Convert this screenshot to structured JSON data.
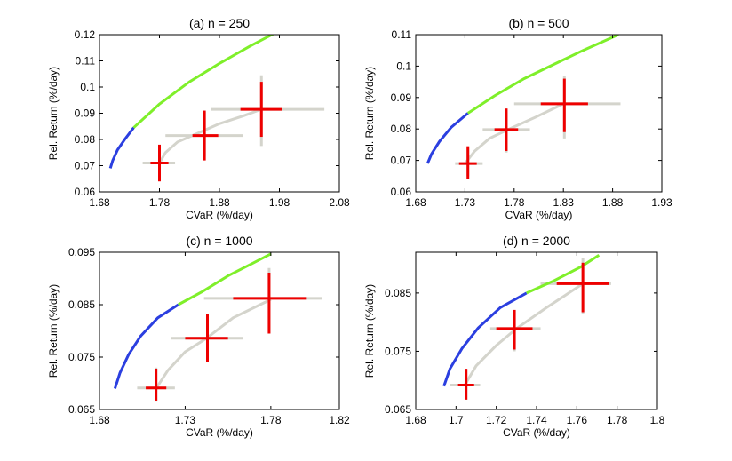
{
  "chart_data": [
    {
      "type": "line",
      "title": "(a) n = 250",
      "xlabel": "CVaR (%/day)",
      "ylabel": "Rel. Return (%/day)",
      "xlim": [
        1.68,
        2.08
      ],
      "ylim": [
        0.06,
        0.12
      ],
      "xticks": [
        "1.68",
        "1.78",
        "1.88",
        "1.98",
        "2.08"
      ],
      "yticks": [
        "0.06",
        "0.07",
        "0.08",
        "0.09",
        "0.1",
        "0.11",
        "0.12"
      ],
      "frontier_blue": [
        [
          1.698,
          0.069
        ],
        [
          1.702,
          0.072
        ],
        [
          1.71,
          0.076
        ],
        [
          1.722,
          0.08
        ],
        [
          1.737,
          0.0845
        ]
      ],
      "frontier_green": [
        [
          1.737,
          0.0845
        ],
        [
          1.78,
          0.0935
        ],
        [
          1.83,
          0.102
        ],
        [
          1.88,
          0.109
        ],
        [
          1.93,
          0.1155
        ],
        [
          1.97,
          0.1203
        ]
      ],
      "gray_curve": [
        [
          1.78,
          0.071
        ],
        [
          1.79,
          0.075
        ],
        [
          1.81,
          0.079
        ],
        [
          1.84,
          0.082
        ],
        [
          1.88,
          0.086
        ],
        [
          1.92,
          0.089
        ],
        [
          1.95,
          0.0915
        ]
      ],
      "estimates": [
        {
          "x": 1.78,
          "y": 0.071,
          "x_lo": 1.765,
          "x_hi": 1.795,
          "y_lo": 0.064,
          "y_hi": 0.078,
          "gx_lo": 1.752,
          "gx_hi": 1.806,
          "gy_lo": 0.0655,
          "gy_hi": 0.0775
        },
        {
          "x": 1.855,
          "y": 0.0815,
          "x_lo": 1.835,
          "x_hi": 1.878,
          "y_lo": 0.072,
          "y_hi": 0.091,
          "gx_lo": 1.79,
          "gx_hi": 1.92,
          "gy_lo": 0.0735,
          "gy_hi": 0.0905
        },
        {
          "x": 1.95,
          "y": 0.0915,
          "x_lo": 1.915,
          "x_hi": 1.985,
          "y_lo": 0.081,
          "y_hi": 0.102,
          "gx_lo": 1.866,
          "gx_hi": 2.055,
          "gy_lo": 0.0775,
          "gy_hi": 0.1045
        }
      ]
    },
    {
      "type": "line",
      "title": "(b) n = 500",
      "xlabel": "CVaR (%/day)",
      "ylabel": "Rel. Return (%/day)",
      "xlim": [
        1.68,
        1.93
      ],
      "ylim": [
        0.06,
        0.11
      ],
      "xticks": [
        "1.68",
        "1.73",
        "1.78",
        "1.83",
        "1.88",
        "1.93"
      ],
      "yticks": [
        "0.06",
        "0.07",
        "0.08",
        "0.09",
        "0.1",
        "0.11"
      ],
      "frontier_blue": [
        [
          1.692,
          0.069
        ],
        [
          1.696,
          0.072
        ],
        [
          1.704,
          0.076
        ],
        [
          1.716,
          0.0805
        ],
        [
          1.733,
          0.085
        ]
      ],
      "frontier_green": [
        [
          1.733,
          0.085
        ],
        [
          1.76,
          0.0905
        ],
        [
          1.79,
          0.096
        ],
        [
          1.82,
          0.1005
        ],
        [
          1.85,
          0.105
        ],
        [
          1.886,
          0.11
        ]
      ],
      "gray_curve": [
        [
          1.73,
          0.069
        ],
        [
          1.74,
          0.073
        ],
        [
          1.755,
          0.077
        ],
        [
          1.775,
          0.08
        ],
        [
          1.8,
          0.0835
        ],
        [
          1.83,
          0.088
        ]
      ],
      "estimates": [
        {
          "x": 1.733,
          "y": 0.069,
          "x_lo": 1.724,
          "x_hi": 1.742,
          "y_lo": 0.064,
          "y_hi": 0.0745,
          "gx_lo": 1.72,
          "gx_hi": 1.748,
          "gy_lo": 0.065,
          "gy_hi": 0.074
        },
        {
          "x": 1.772,
          "y": 0.0798,
          "x_lo": 1.76,
          "x_hi": 1.784,
          "y_lo": 0.073,
          "y_hi": 0.0865,
          "gx_lo": 1.748,
          "gx_hi": 1.796,
          "gy_lo": 0.0725,
          "gy_hi": 0.0855
        },
        {
          "x": 1.831,
          "y": 0.088,
          "x_lo": 1.807,
          "x_hi": 1.855,
          "y_lo": 0.079,
          "y_hi": 0.096,
          "gx_lo": 1.78,
          "gx_hi": 1.888,
          "gy_lo": 0.077,
          "gy_hi": 0.097
        }
      ]
    },
    {
      "type": "line",
      "title": "(c) n = 1000",
      "xlabel": "CVaR (%/day)",
      "ylabel": "Rel. Return (%/day)",
      "xlim": [
        1.68,
        1.82
      ],
      "ylim": [
        0.065,
        0.095
      ],
      "xticks": [
        "1.68",
        "1.73",
        "1.78",
        "1.82"
      ],
      "yticks": [
        "0.065",
        "0.075",
        "0.085",
        "0.095"
      ],
      "frontier_blue": [
        [
          1.689,
          0.069
        ],
        [
          1.692,
          0.072
        ],
        [
          1.697,
          0.0755
        ],
        [
          1.704,
          0.079
        ],
        [
          1.714,
          0.0825
        ],
        [
          1.726,
          0.085
        ]
      ],
      "frontier_green": [
        [
          1.726,
          0.085
        ],
        [
          1.74,
          0.0875
        ],
        [
          1.755,
          0.0905
        ],
        [
          1.77,
          0.093
        ],
        [
          1.78,
          0.0947
        ]
      ],
      "gray_curve": [
        [
          1.713,
          0.069
        ],
        [
          1.72,
          0.0725
        ],
        [
          1.73,
          0.076
        ],
        [
          1.742,
          0.0785
        ],
        [
          1.758,
          0.0825
        ],
        [
          1.78,
          0.086
        ]
      ],
      "estimates": [
        {
          "x": 1.713,
          "y": 0.0691,
          "x_lo": 1.707,
          "x_hi": 1.719,
          "y_lo": 0.0667,
          "y_hi": 0.0728,
          "gx_lo": 1.702,
          "gx_hi": 1.724,
          "gy_lo": 0.0665,
          "gy_hi": 0.073
        },
        {
          "x": 1.743,
          "y": 0.0786,
          "x_lo": 1.73,
          "x_hi": 1.755,
          "y_lo": 0.074,
          "y_hi": 0.0832,
          "gx_lo": 1.722,
          "gx_hi": 1.764,
          "gy_lo": 0.074,
          "gy_hi": 0.083
        },
        {
          "x": 1.779,
          "y": 0.0862,
          "x_lo": 1.758,
          "x_hi": 1.801,
          "y_lo": 0.0795,
          "y_hi": 0.0911,
          "gx_lo": 1.741,
          "gx_hi": 1.81,
          "gy_lo": 0.0795,
          "gy_hi": 0.092
        }
      ]
    },
    {
      "type": "line",
      "title": "(d) n = 2000",
      "xlabel": "CVaR (%/day)",
      "ylabel": "Rel. Return (%/day)",
      "xlim": [
        1.68,
        1.8
      ],
      "ylim": [
        0.065,
        0.092
      ],
      "xticks": [
        "1.68",
        "1.7",
        "1.72",
        "1.74",
        "1.76",
        "1.78",
        "1.8"
      ],
      "yticks": [
        "0.065",
        "0.075",
        "0.085"
      ],
      "frontier_blue": [
        [
          1.694,
          0.069
        ],
        [
          1.697,
          0.072
        ],
        [
          1.703,
          0.0755
        ],
        [
          1.711,
          0.079
        ],
        [
          1.722,
          0.0825
        ],
        [
          1.735,
          0.085
        ]
      ],
      "frontier_green": [
        [
          1.735,
          0.085
        ],
        [
          1.748,
          0.087
        ],
        [
          1.762,
          0.0895
        ],
        [
          1.771,
          0.0915
        ]
      ],
      "gray_curve": [
        [
          1.704,
          0.069
        ],
        [
          1.71,
          0.0725
        ],
        [
          1.72,
          0.076
        ],
        [
          1.73,
          0.0789
        ],
        [
          1.745,
          0.0825
        ],
        [
          1.763,
          0.0866
        ]
      ],
      "estimates": [
        {
          "x": 1.705,
          "y": 0.0692,
          "x_lo": 1.701,
          "x_hi": 1.709,
          "y_lo": 0.0667,
          "y_hi": 0.072,
          "gx_lo": 1.697,
          "gx_hi": 1.712,
          "gy_lo": 0.0667,
          "gy_hi": 0.0718
        },
        {
          "x": 1.729,
          "y": 0.0789,
          "x_lo": 1.72,
          "x_hi": 1.738,
          "y_lo": 0.0753,
          "y_hi": 0.0821,
          "gx_lo": 1.717,
          "gx_hi": 1.742,
          "gy_lo": 0.075,
          "gy_hi": 0.082
        },
        {
          "x": 1.763,
          "y": 0.0866,
          "x_lo": 1.75,
          "x_hi": 1.776,
          "y_lo": 0.0817,
          "y_hi": 0.0902,
          "gx_lo": 1.742,
          "gx_hi": 1.777,
          "gy_lo": 0.0815,
          "gy_hi": 0.091
        }
      ]
    }
  ]
}
